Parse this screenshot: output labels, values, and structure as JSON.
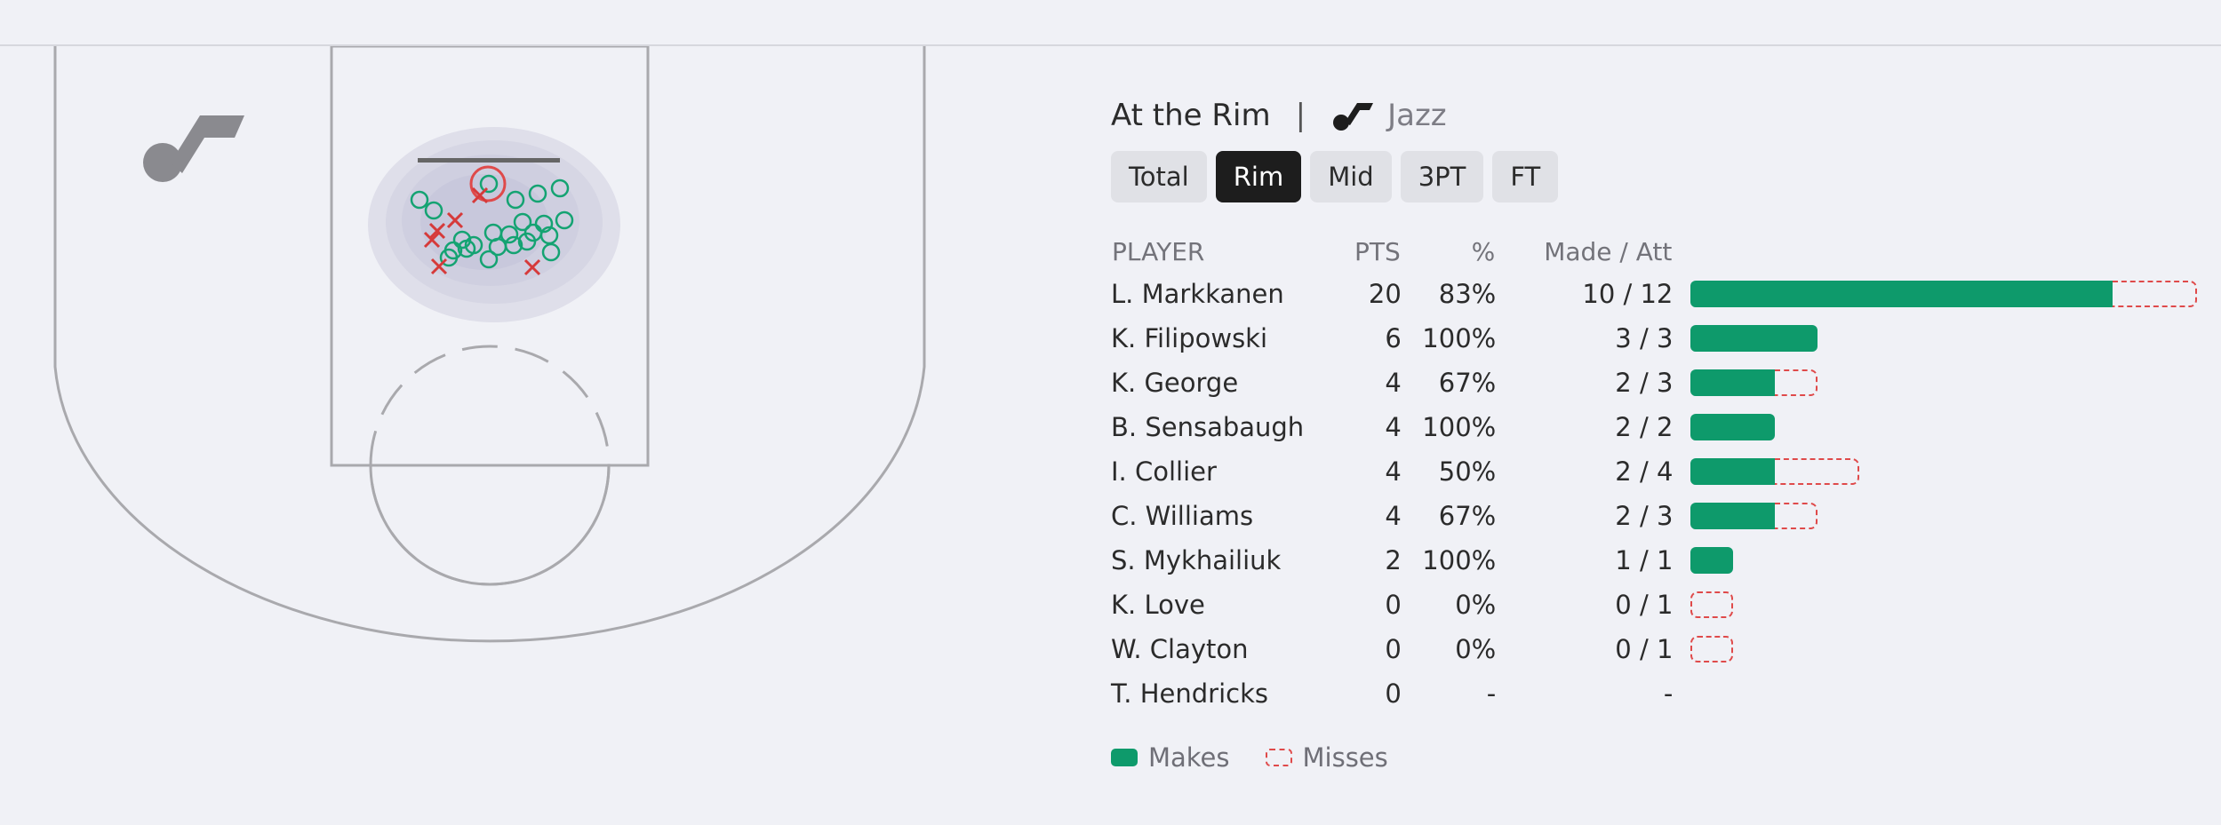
{
  "header": {
    "title": "At the Rim",
    "separator": "|",
    "team": "Jazz"
  },
  "tabs": [
    {
      "label": "Total",
      "active": false
    },
    {
      "label": "Rim",
      "active": true
    },
    {
      "label": "Mid",
      "active": false
    },
    {
      "label": "3PT",
      "active": false
    },
    {
      "label": "FT",
      "active": false
    }
  ],
  "table": {
    "headers": {
      "player": "PLAYER",
      "pts": "PTS",
      "pct": "%",
      "made_att": "Made / Att"
    },
    "rows": [
      {
        "player": "L. Markkanen",
        "pts": "20",
        "pct": "83%",
        "made_att": "10 / 12",
        "made": 10,
        "att": 12
      },
      {
        "player": "K. Filipowski",
        "pts": "6",
        "pct": "100%",
        "made_att": "3 / 3",
        "made": 3,
        "att": 3
      },
      {
        "player": "K. George",
        "pts": "4",
        "pct": "67%",
        "made_att": "2 / 3",
        "made": 2,
        "att": 3
      },
      {
        "player": "B. Sensabaugh",
        "pts": "4",
        "pct": "100%",
        "made_att": "2 / 2",
        "made": 2,
        "att": 2
      },
      {
        "player": "I. Collier",
        "pts": "4",
        "pct": "50%",
        "made_att": "2 / 4",
        "made": 2,
        "att": 4
      },
      {
        "player": "C. Williams",
        "pts": "4",
        "pct": "67%",
        "made_att": "2 / 3",
        "made": 2,
        "att": 3
      },
      {
        "player": "S. Mykhailiuk",
        "pts": "2",
        "pct": "100%",
        "made_att": "1 / 1",
        "made": 1,
        "att": 1
      },
      {
        "player": "K. Love",
        "pts": "0",
        "pct": "0%",
        "made_att": "0 / 1",
        "made": 0,
        "att": 1
      },
      {
        "player": "W. Clayton",
        "pts": "0",
        "pct": "0%",
        "made_att": "0 / 1",
        "made": 0,
        "att": 1
      },
      {
        "player": "T. Hendricks",
        "pts": "0",
        "pct": "-",
        "made_att": "-",
        "made": 0,
        "att": 0
      }
    ]
  },
  "legend": {
    "makes": "Makes",
    "misses": "Misses"
  },
  "colors": {
    "make": "#0e9a6b",
    "miss": "#df4a4a",
    "court_line": "#a9a9ad",
    "active_tab": "#1d1d1d"
  }
}
